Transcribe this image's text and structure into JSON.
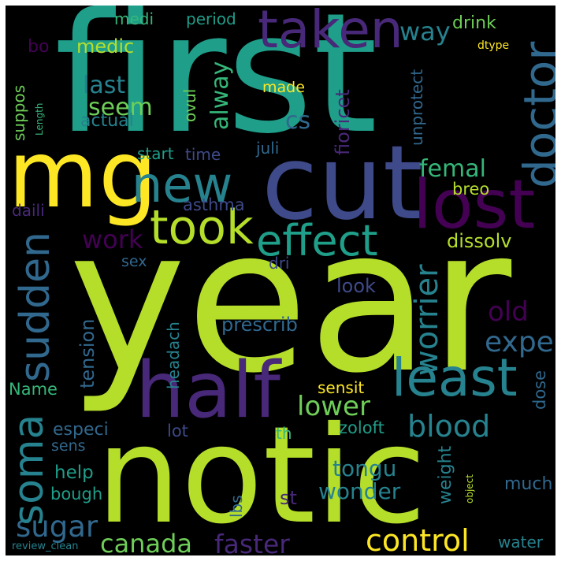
{
  "background_color": "#000000",
  "palette": [
    "#440154",
    "#482878",
    "#3e4a89",
    "#31688e",
    "#26828e",
    "#1f9e89",
    "#35b779",
    "#6ece58",
    "#b5de2b",
    "#fde725"
  ],
  "words": {
    "year": "year",
    "notic": "notic",
    "first": "first",
    "cut": "cut",
    "mg": "mg",
    "half": "half",
    "lost": "lost",
    "least": "least",
    "took": "took",
    "effect": "effect",
    "taken": "taken",
    "new": "new",
    "doctor": "doctor",
    "soma": "soma",
    "sudden": "sudden",
    "control": "control",
    "canada": "canada",
    "faster": "faster",
    "blood": "blood",
    "sugar": "sugar",
    "worrier": "worrier",
    "expe": "expe",
    "old": "old",
    "lower": "lower",
    "work": "work",
    "seem": "seem",
    "last": "last",
    "femal": "femal",
    "alway": "alway",
    "cs": "cs",
    "way": "way",
    "drink": "drink",
    "medi": "medi",
    "period": "period",
    "medic": "medic",
    "bo": "bo",
    "dtype": "dtype",
    "actual": "actual",
    "suppos": "suppos",
    "ovul": "ovul",
    "made": "made",
    "unprotect": "unprotect",
    "fioricet": "fioricet",
    "start": "start",
    "time": "time",
    "juli": "juli",
    "breo": "breo",
    "asthma": "asthma",
    "daili": "daili",
    "dissolv": "dissolv",
    "sex": "sex",
    "dri": "dri",
    "look": "look",
    "prescrib": "prescrib",
    "tension": "tension",
    "headach": "headach",
    "Name": "Name",
    "sensit": "sensit",
    "dose": "dose",
    "especi": "especi",
    "lot": "lot",
    "th": "th",
    "zoloft": "zoloft",
    "sens": "sens",
    "help": "help",
    "tongu": "tongu",
    "weight": "weight",
    "much": "much",
    "bough": "bough",
    "lbs": "lbs",
    "wonder": "wonder",
    "st": "st",
    "object": "object",
    "water": "water",
    "review_clean": "review_clean",
    "Length": "Length"
  }
}
